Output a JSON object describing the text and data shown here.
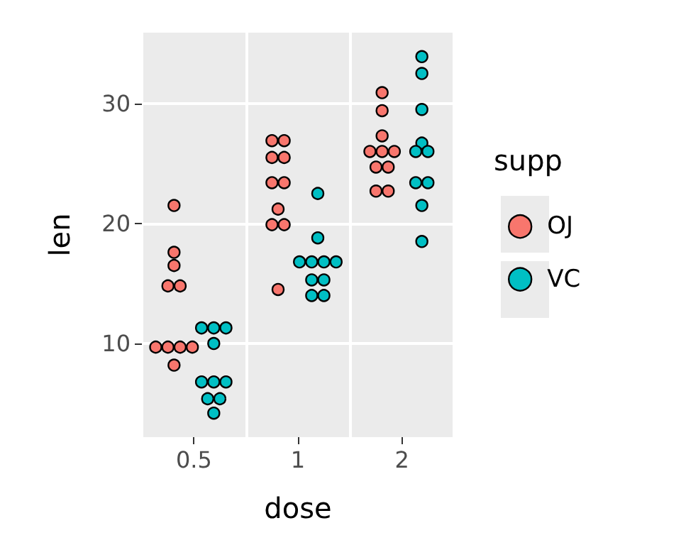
{
  "chart_data": {
    "type": "scatter",
    "xlabel": "dose",
    "ylabel": "len",
    "legend_title": "supp",
    "categories": [
      "0.5",
      "1",
      "2"
    ],
    "ylim": [
      2.2,
      35.9
    ],
    "yticks": [
      10,
      20,
      30
    ],
    "grid": true,
    "legend": "right",
    "marker": "circle",
    "series": [
      {
        "name": "OJ",
        "color": "#f8766d",
        "x": [
          "0.5",
          "0.5",
          "0.5",
          "0.5",
          "0.5",
          "0.5",
          "0.5",
          "0.5",
          "0.5",
          "0.5",
          "1",
          "1",
          "1",
          "1",
          "1",
          "1",
          "1",
          "1",
          "1",
          "1",
          "2",
          "2",
          "2",
          "2",
          "2",
          "2",
          "2",
          "2",
          "2",
          "2"
        ],
        "values": [
          21.5,
          17.6,
          16.5,
          14.8,
          14.8,
          9.7,
          9.7,
          9.7,
          9.7,
          8.2,
          26.9,
          26.9,
          25.5,
          25.5,
          23.4,
          23.4,
          21.2,
          19.9,
          19.9,
          14.5,
          30.9,
          29.4,
          27.3,
          26.0,
          26.0,
          26.0,
          24.7,
          24.7,
          22.7,
          22.7
        ]
      },
      {
        "name": "VC",
        "color": "#00bfc4",
        "x": [
          "0.5",
          "0.5",
          "0.5",
          "0.5",
          "0.5",
          "0.5",
          "0.5",
          "0.5",
          "0.5",
          "0.5",
          "1",
          "1",
          "1",
          "1",
          "1",
          "1",
          "1",
          "1",
          "1",
          "1",
          "2",
          "2",
          "2",
          "2",
          "2",
          "2",
          "2",
          "2",
          "2",
          "2"
        ],
        "values": [
          11.3,
          11.3,
          11.3,
          10.0,
          6.8,
          6.8,
          6.8,
          5.4,
          5.4,
          4.2,
          22.5,
          18.8,
          16.8,
          16.8,
          16.8,
          16.8,
          15.3,
          15.3,
          14.0,
          14.0,
          33.9,
          32.5,
          29.5,
          26.7,
          26.0,
          26.0,
          23.4,
          23.4,
          21.5,
          18.5
        ]
      }
    ]
  }
}
